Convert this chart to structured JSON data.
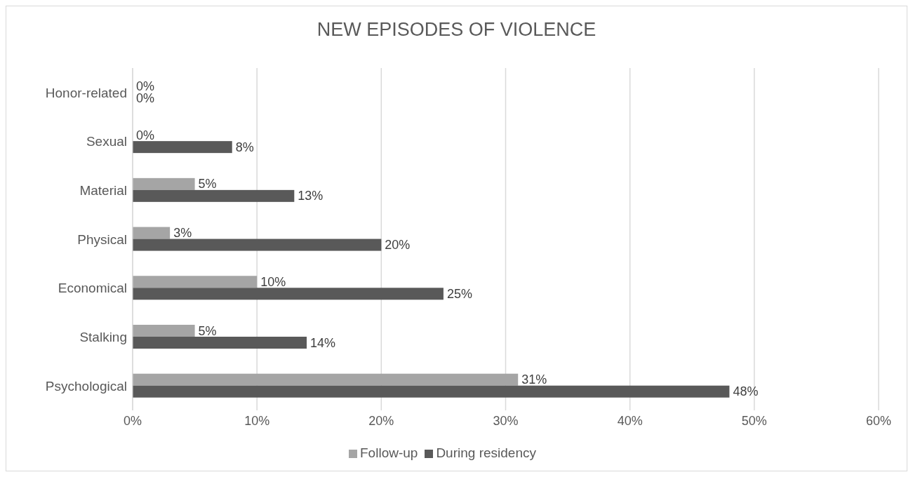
{
  "chart_data": {
    "type": "bar",
    "orientation": "horizontal",
    "title": "NEW EPISODES OF VIOLENCE",
    "categories": [
      "Honor-related",
      "Sexual",
      "Material",
      "Physical",
      "Economical",
      "Stalking",
      "Psychological"
    ],
    "series": [
      {
        "name": "Follow-up",
        "color": "#a5a5a5",
        "values": [
          0,
          0,
          5,
          3,
          10,
          5,
          31
        ],
        "value_labels": [
          "0%",
          "0%",
          "5%",
          "3%",
          "10%",
          "5%",
          "31%"
        ]
      },
      {
        "name": "During residency",
        "color": "#595959",
        "values": [
          0,
          8,
          13,
          20,
          25,
          14,
          48
        ],
        "value_labels": [
          "0%",
          "8%",
          "13%",
          "20%",
          "25%",
          "14%",
          "48%"
        ]
      }
    ],
    "xlim": [
      0,
      60
    ],
    "xticks": [
      {
        "value": 0,
        "label": "0%"
      },
      {
        "value": 10,
        "label": "10%"
      },
      {
        "value": 20,
        "label": "20%"
      },
      {
        "value": 30,
        "label": "30%"
      },
      {
        "value": 40,
        "label": "40%"
      },
      {
        "value": 50,
        "label": "50%"
      },
      {
        "value": 60,
        "label": "60%"
      }
    ],
    "grid": "x",
    "legend": "bottom"
  }
}
